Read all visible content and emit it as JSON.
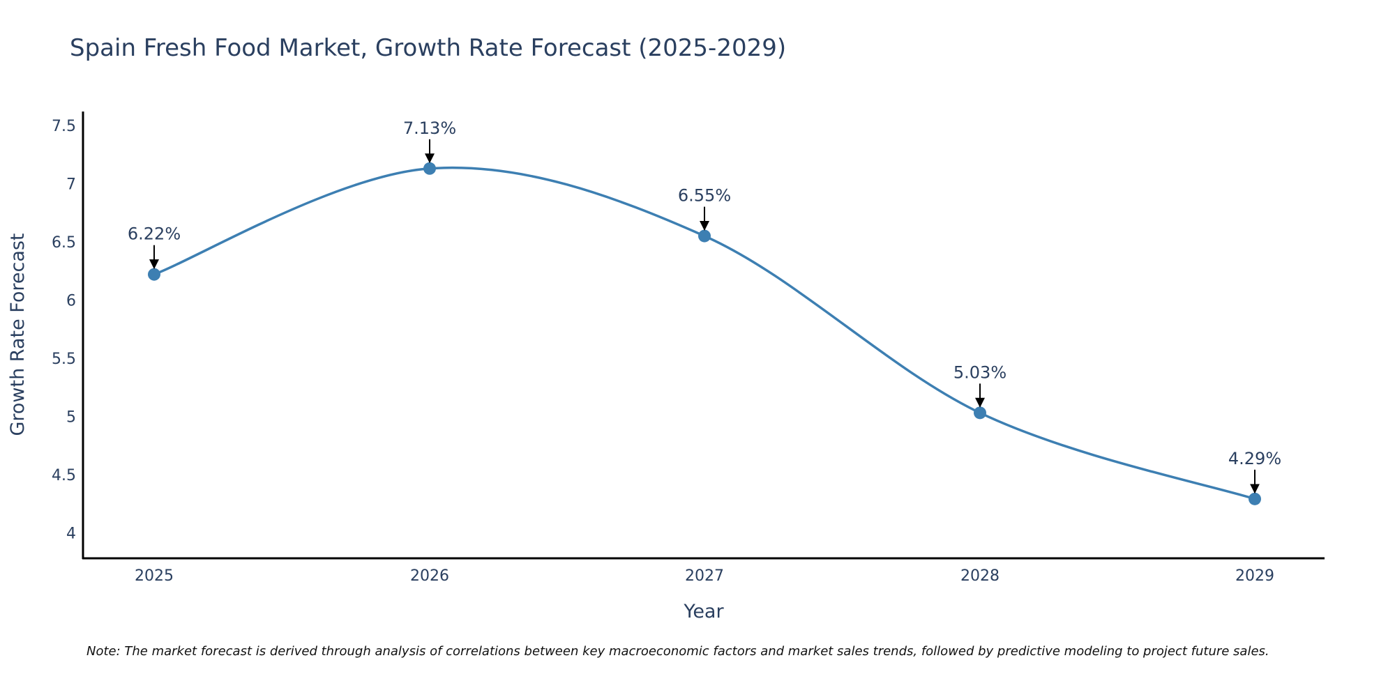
{
  "chart_data": {
    "type": "line",
    "title": "Spain Fresh Food Market, Growth Rate Forecast (2025-2029)",
    "xlabel": "Year",
    "ylabel": "Growth Rate Forecast",
    "categories": [
      "2025",
      "2026",
      "2027",
      "2028",
      "2029"
    ],
    "series": [
      {
        "name": "Growth Rate Forecast",
        "values": [
          6.22,
          7.13,
          6.55,
          5.03,
          4.29
        ],
        "color": "#3d7fb2"
      }
    ],
    "data_labels": [
      "6.22%",
      "7.13%",
      "6.55%",
      "5.03%",
      "4.29%"
    ],
    "ylim": [
      3.78,
      7.62
    ],
    "yticks": [
      4,
      4.5,
      5,
      5.5,
      6,
      6.5,
      7,
      7.5
    ],
    "ytick_labels": [
      "4",
      "4.5",
      "5",
      "5.5",
      "6",
      "6.5",
      "7",
      "7.5"
    ],
    "line_shape": "spline",
    "grid": false,
    "note": "Note: The market forecast is derived through analysis of correlations between key macroeconomic factors and market sales trends, followed by predictive modeling to project future sales."
  }
}
